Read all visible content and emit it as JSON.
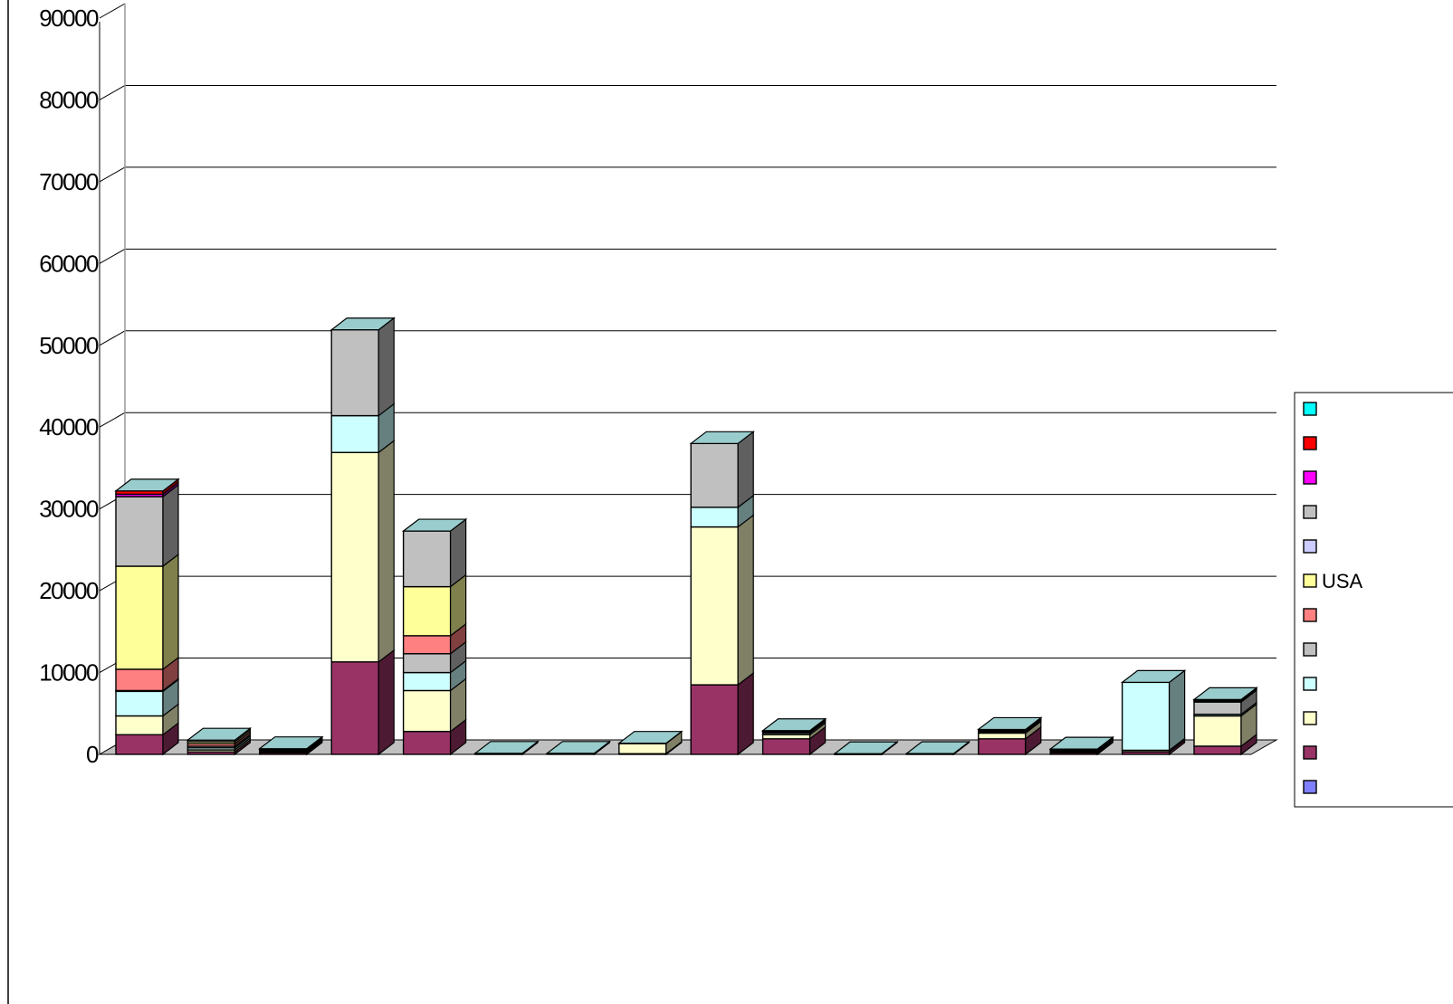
{
  "chart_data": {
    "type": "bar",
    "stacked": true,
    "three_d": true,
    "title": "",
    "xlabel": "",
    "ylabel": "",
    "ylim": [
      0,
      90000
    ],
    "yticks": [
      0,
      10000,
      20000,
      30000,
      40000,
      50000,
      60000,
      70000,
      80000,
      90000
    ],
    "ytick_labels": [
      "0",
      "10000",
      "20000",
      "30000",
      "40000",
      "50000",
      "60000",
      "70000",
      "80000",
      "90000"
    ],
    "grid": true,
    "legend_position": "right",
    "categories": [
      "",
      "",
      "",
      "",
      "",
      "",
      "",
      "",
      "",
      "",
      "",
      "",
      "",
      "",
      "",
      ""
    ],
    "series": [
      {
        "name": "",
        "color": "#8080ff",
        "values": [
          0,
          0,
          0,
          0,
          0,
          0,
          0,
          0,
          0,
          0,
          0,
          0,
          0,
          0,
          0,
          0
        ]
      },
      {
        "name": "",
        "color": "#993366",
        "values": [
          2400,
          300,
          200,
          11300,
          2800,
          50,
          80,
          80,
          8500,
          1900,
          30,
          50,
          1900,
          200,
          300,
          1000
        ]
      },
      {
        "name": "",
        "color": "#ffffcc",
        "values": [
          2300,
          250,
          150,
          25600,
          5000,
          50,
          30,
          1250,
          19300,
          500,
          30,
          30,
          700,
          150,
          200,
          3700
        ]
      },
      {
        "name": "",
        "color": "#ccffff",
        "values": [
          3000,
          250,
          100,
          4500,
          2200,
          30,
          20,
          30,
          2400,
          200,
          20,
          20,
          150,
          100,
          8300,
          200
        ]
      },
      {
        "name": "",
        "color": "#c0c0c0",
        "values": [
          100,
          200,
          100,
          0,
          2300,
          0,
          0,
          0,
          0,
          100,
          0,
          0,
          100,
          50,
          0,
          1500
        ]
      },
      {
        "name": "",
        "color": "#ff8080",
        "values": [
          2600,
          300,
          50,
          0,
          2200,
          0,
          0,
          0,
          0,
          50,
          0,
          0,
          50,
          50,
          0,
          100
        ]
      },
      {
        "name": "USA",
        "color": "#ffff99",
        "values": [
          12600,
          250,
          50,
          0,
          6000,
          0,
          0,
          0,
          0,
          100,
          0,
          0,
          100,
          50,
          0,
          100
        ]
      },
      {
        "name": "",
        "color": "#ccccff",
        "values": [
          0,
          0,
          0,
          0,
          0,
          0,
          0,
          0,
          0,
          0,
          0,
          0,
          0,
          0,
          0,
          0
        ]
      },
      {
        "name": "",
        "color": "#c0c0c0",
        "values": [
          8500,
          200,
          50,
          10500,
          6800,
          0,
          0,
          0,
          7800,
          50,
          0,
          0,
          50,
          50,
          0,
          100
        ]
      },
      {
        "name": "",
        "color": "#ff00ff",
        "values": [
          300,
          0,
          0,
          0,
          0,
          0,
          0,
          0,
          0,
          0,
          0,
          0,
          0,
          0,
          0,
          0
        ]
      },
      {
        "name": "",
        "color": "#ff0000",
        "values": [
          400,
          0,
          0,
          0,
          0,
          0,
          0,
          0,
          0,
          0,
          0,
          0,
          0,
          0,
          0,
          0
        ]
      },
      {
        "name": "",
        "color": "#00ffff",
        "values": [
          0,
          0,
          0,
          0,
          0,
          0,
          0,
          0,
          0,
          0,
          0,
          0,
          0,
          0,
          0,
          0
        ]
      }
    ]
  }
}
